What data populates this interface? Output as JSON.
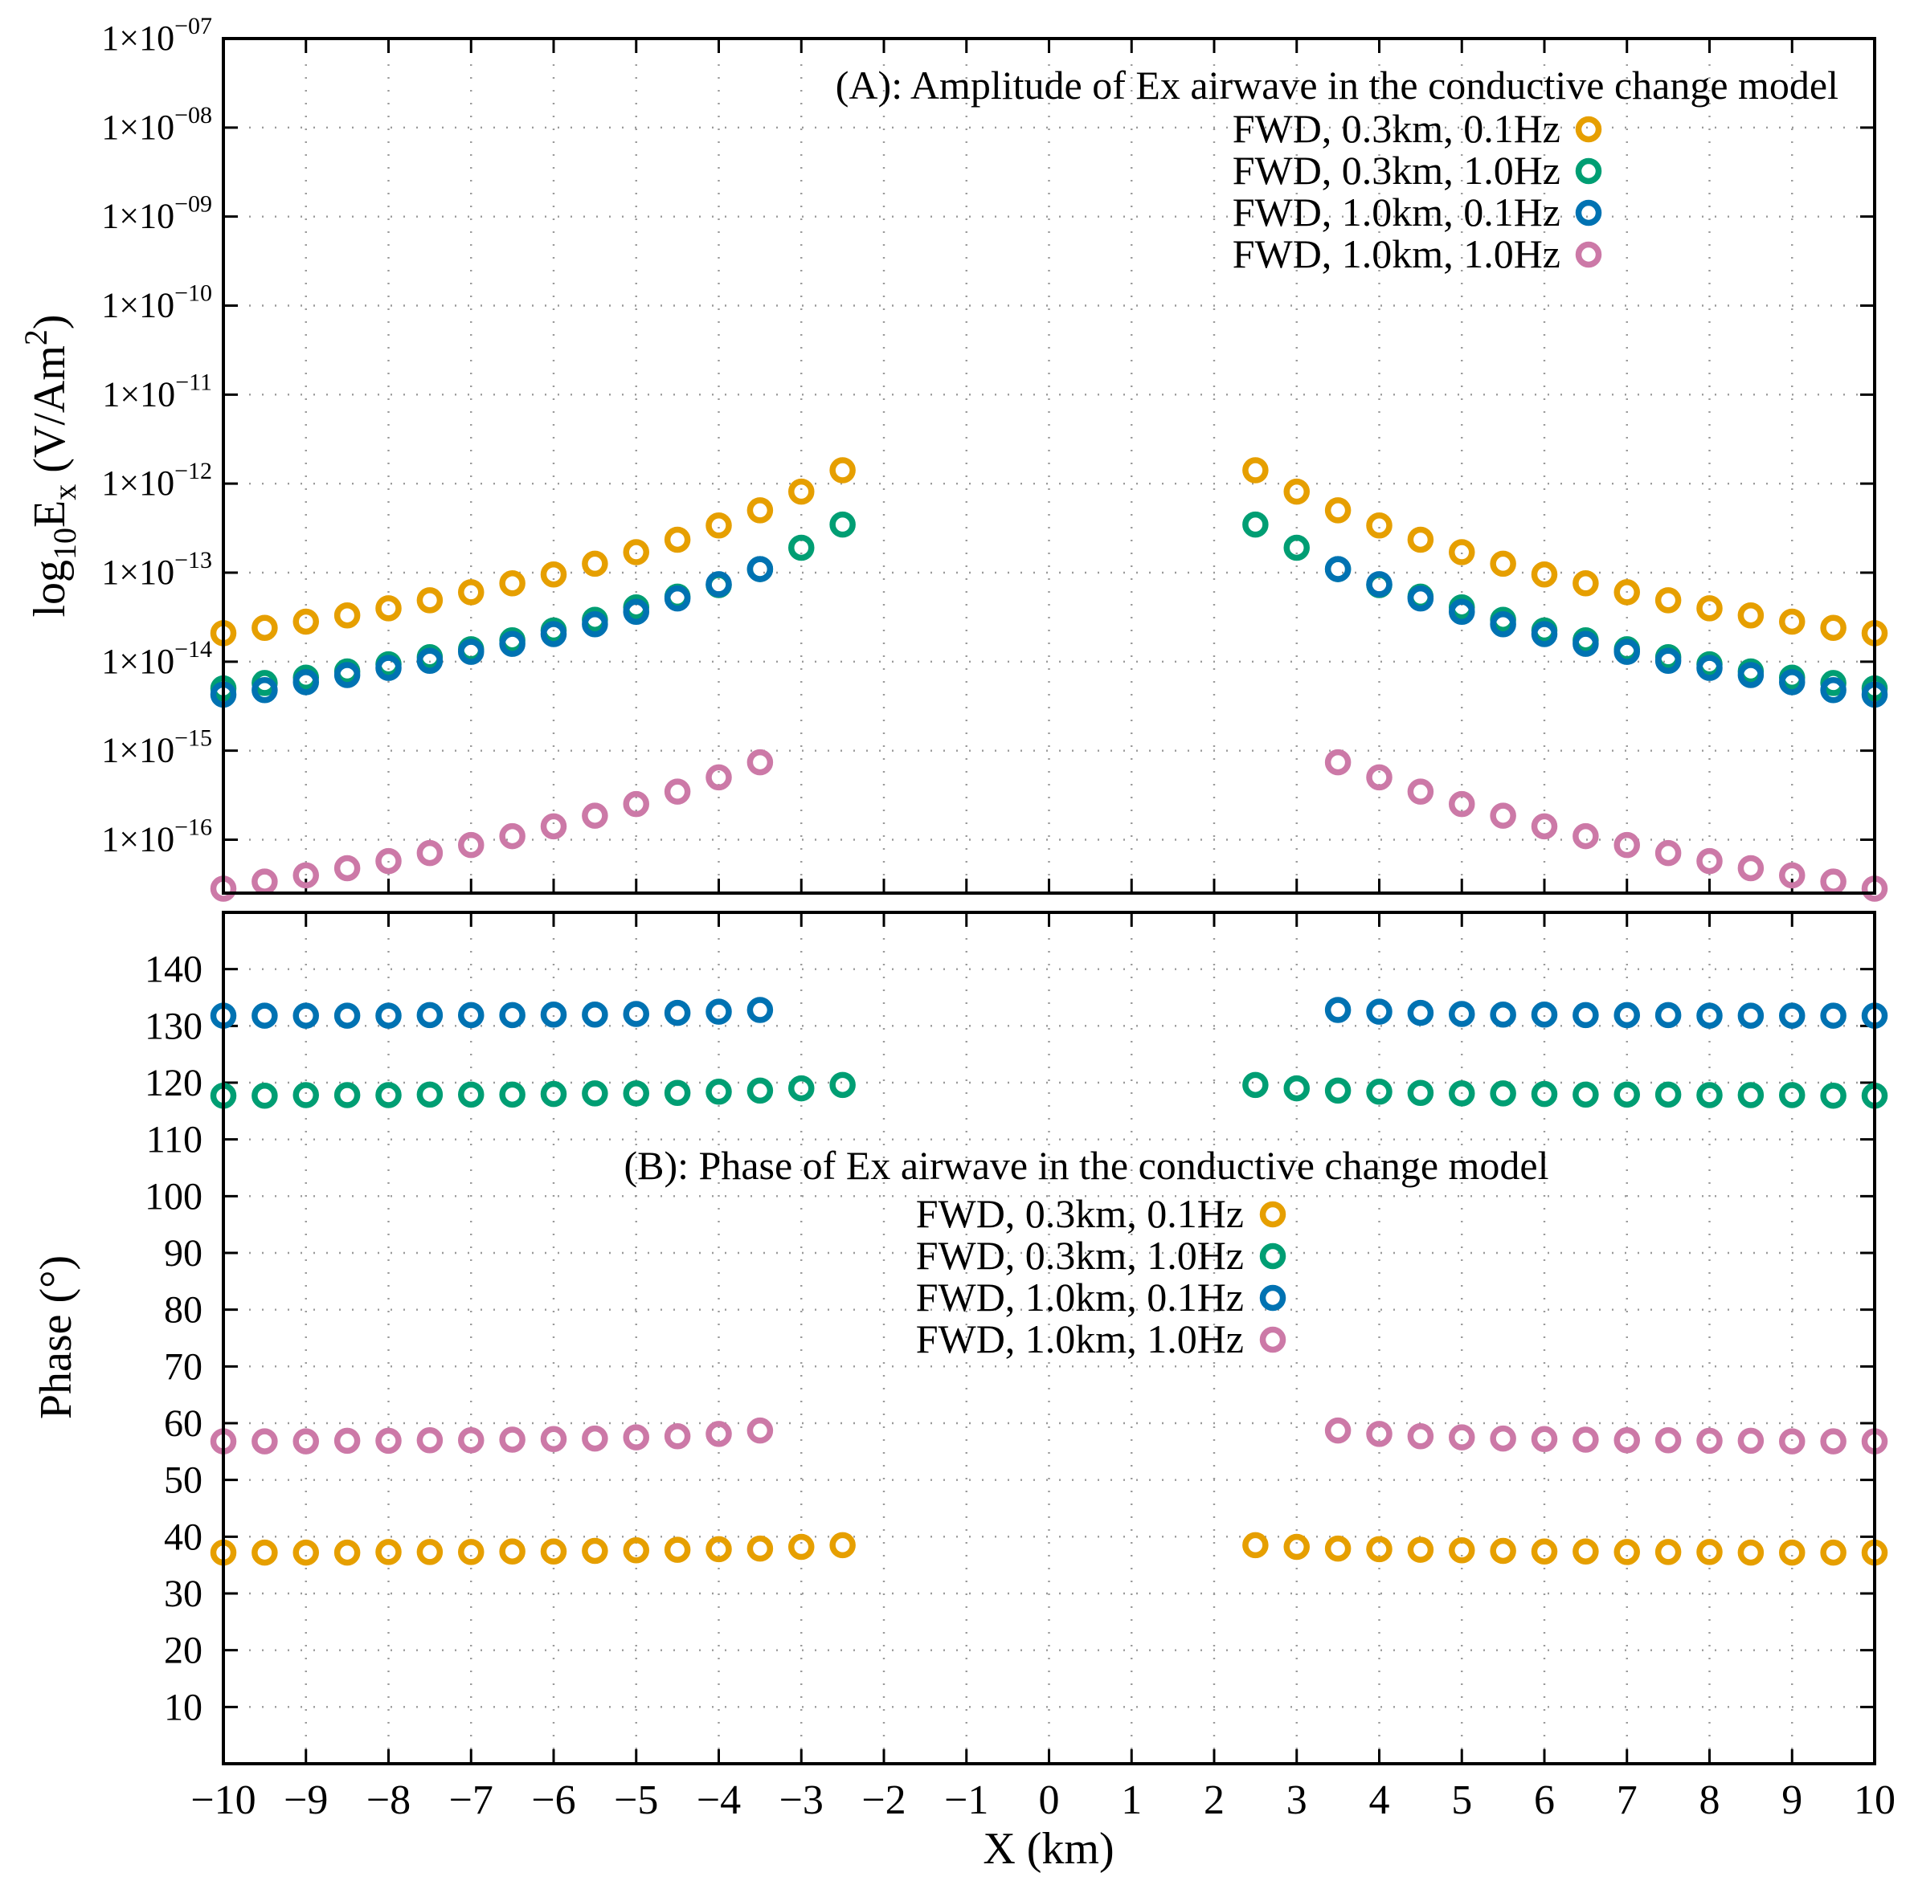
{
  "chart_data": [
    {
      "type": "scatter",
      "title": "(A): Amplitude of Ex airwave in the conductive change model",
      "xlabel": "X (km)",
      "ylabel": "log10Ex (V/Am2)",
      "ylabel_parts": {
        "prefix": "log",
        "sub1": "10",
        "main": "E",
        "sub2": "x",
        "unit_open": " (V/Am",
        "sup": "2",
        "unit_close": ")"
      },
      "yscale": "log",
      "ylim": [
        -16.6,
        -7
      ],
      "xlim": [
        -10,
        10
      ],
      "yticks": [
        {
          "exp": -16,
          "mant": "1×10",
          "sup": "−16"
        },
        {
          "exp": -15,
          "mant": "1×10",
          "sup": "−15"
        },
        {
          "exp": -14,
          "mant": "1×10",
          "sup": "−14"
        },
        {
          "exp": -13,
          "mant": "1×10",
          "sup": "−13"
        },
        {
          "exp": -12,
          "mant": "1×10",
          "sup": "−12"
        },
        {
          "exp": -11,
          "mant": "1×10",
          "sup": "−11"
        },
        {
          "exp": -10,
          "mant": "1×10",
          "sup": "−10"
        },
        {
          "exp": -9,
          "mant": "1×10",
          "sup": "−09"
        },
        {
          "exp": -8,
          "mant": "1×10",
          "sup": "−08"
        },
        {
          "exp": -7,
          "mant": "1×10",
          "sup": "−07"
        }
      ],
      "legend_position": "top-right",
      "series": [
        {
          "name": "FWD, 0.3km, 0.1Hz",
          "color": "#E69F00",
          "x": [
            -10,
            -9.5,
            -9,
            -8.5,
            -8,
            -7.5,
            -7,
            -6.5,
            -6,
            -5.5,
            -5,
            -4.5,
            -4,
            -3.5,
            -3,
            -2.5,
            2.5,
            3,
            3.5,
            4,
            4.5,
            5,
            5.5,
            6,
            6.5,
            7,
            7.5,
            8,
            8.5,
            9,
            9.5,
            10
          ],
          "log10_y": [
            -13.68,
            -13.62,
            -13.55,
            -13.48,
            -13.4,
            -13.31,
            -13.22,
            -13.12,
            -13.02,
            -12.9,
            -12.77,
            -12.63,
            -12.47,
            -12.3,
            -12.09,
            -11.85,
            -11.85,
            -12.09,
            -12.3,
            -12.47,
            -12.63,
            -12.77,
            -12.9,
            -13.02,
            -13.12,
            -13.22,
            -13.31,
            -13.4,
            -13.48,
            -13.55,
            -13.62,
            -13.68
          ]
        },
        {
          "name": "FWD, 0.3km, 1.0Hz",
          "color": "#009E73",
          "x": [
            -10,
            -9.5,
            -9,
            -8.5,
            -8,
            -7.5,
            -7,
            -6.5,
            -6,
            -5.5,
            -5,
            -4.5,
            -4,
            -3.5,
            -3,
            -2.5,
            2.5,
            3,
            3.5,
            4,
            4.5,
            5,
            5.5,
            6,
            6.5,
            7,
            7.5,
            8,
            8.5,
            9,
            9.5,
            10
          ],
          "log10_y": [
            -14.3,
            -14.24,
            -14.18,
            -14.11,
            -14.03,
            -13.95,
            -13.86,
            -13.76,
            -13.65,
            -13.53,
            -13.39,
            -13.27,
            -13.14,
            -12.96,
            -12.72,
            -12.46,
            -12.46,
            -12.72,
            -12.96,
            -13.14,
            -13.27,
            -13.39,
            -13.53,
            -13.65,
            -13.76,
            -13.86,
            -13.95,
            -14.03,
            -14.11,
            -14.18,
            -14.24,
            -14.3
          ]
        },
        {
          "name": "FWD, 1.0km, 0.1Hz",
          "color": "#0072B2",
          "x": [
            -10,
            -9.5,
            -9,
            -8.5,
            -8,
            -7.5,
            -7,
            -6.5,
            -6,
            -5.5,
            -5,
            -4.5,
            -4,
            -3.5,
            3.5,
            4,
            4.5,
            5,
            5.5,
            6,
            6.5,
            7,
            7.5,
            8,
            8.5,
            9,
            9.5,
            10
          ],
          "log10_y": [
            -14.37,
            -14.32,
            -14.23,
            -14.15,
            -14.07,
            -13.99,
            -13.89,
            -13.8,
            -13.69,
            -13.58,
            -13.44,
            -13.29,
            -13.13,
            -12.96,
            -12.96,
            -13.13,
            -13.29,
            -13.44,
            -13.58,
            -13.69,
            -13.8,
            -13.89,
            -13.99,
            -14.07,
            -14.15,
            -14.23,
            -14.32,
            -14.37
          ]
        },
        {
          "name": "FWD, 1.0km, 1.0Hz",
          "color": "#CC79A7",
          "x": [
            -10,
            -9.5,
            -9,
            -8.5,
            -8,
            -7.5,
            -7,
            -6.5,
            -6,
            -5.5,
            -5,
            -4.5,
            -4,
            -3.5,
            3.5,
            4,
            4.5,
            5,
            5.5,
            6,
            6.5,
            7,
            7.5,
            8,
            8.5,
            9,
            9.5,
            10
          ],
          "log10_y": [
            -16.55,
            -16.47,
            -16.4,
            -16.32,
            -16.24,
            -16.15,
            -16.06,
            -15.96,
            -15.85,
            -15.73,
            -15.6,
            -15.46,
            -15.3,
            -15.13,
            -15.13,
            -15.3,
            -15.46,
            -15.6,
            -15.73,
            -15.85,
            -15.96,
            -16.06,
            -16.15,
            -16.24,
            -16.32,
            -16.4,
            -16.47,
            -16.55
          ]
        }
      ]
    },
    {
      "type": "scatter",
      "title": "(B): Phase of Ex airwave  in the conductive change model",
      "xlabel": "X (km)",
      "ylabel": "Phase (°)",
      "ylim": [
        0,
        150
      ],
      "xlim": [
        -10,
        10
      ],
      "yticks": [
        10,
        20,
        30,
        40,
        50,
        60,
        70,
        80,
        90,
        100,
        110,
        120,
        130,
        140
      ],
      "xticks": [
        -10,
        -9,
        -8,
        -7,
        -6,
        -5,
        -4,
        -3,
        -2,
        -1,
        0,
        1,
        2,
        3,
        4,
        5,
        6,
        7,
        8,
        9,
        10
      ],
      "xtick_labels": [
        "−10",
        "−9",
        "−8",
        "−7",
        "−6",
        "−5",
        "−4",
        "−3",
        "−2",
        "−1",
        "0",
        "1",
        "2",
        "3",
        "4",
        "5",
        "6",
        "7",
        "8",
        "9",
        "10"
      ],
      "legend_position": "center",
      "series": [
        {
          "name": "FWD, 0.3km, 0.1Hz",
          "color": "#E69F00",
          "x": [
            -10,
            -9.5,
            -9,
            -8.5,
            -8,
            -7.5,
            -7,
            -6.5,
            -6,
            -5.5,
            -5,
            -4.5,
            -4,
            -3.5,
            -3,
            -2.5,
            2.5,
            3,
            3.5,
            4,
            4.5,
            5,
            5.5,
            6,
            6.5,
            7,
            7.5,
            8,
            8.5,
            9,
            9.5,
            10
          ],
          "y": [
            37.2,
            37.2,
            37.2,
            37.2,
            37.3,
            37.3,
            37.3,
            37.4,
            37.4,
            37.5,
            37.6,
            37.7,
            37.8,
            37.9,
            38.2,
            38.5,
            38.5,
            38.2,
            37.9,
            37.8,
            37.7,
            37.6,
            37.5,
            37.4,
            37.4,
            37.3,
            37.3,
            37.3,
            37.2,
            37.2,
            37.2,
            37.2
          ]
        },
        {
          "name": "FWD, 0.3km, 1.0Hz",
          "color": "#009E73",
          "x": [
            -10,
            -9.5,
            -9,
            -8.5,
            -8,
            -7.5,
            -7,
            -6.5,
            -6,
            -5.5,
            -5,
            -4.5,
            -4,
            -3.5,
            -3,
            -2.5,
            2.5,
            3,
            3.5,
            4,
            4.5,
            5,
            5.5,
            6,
            6.5,
            7,
            7.5,
            8,
            8.5,
            9,
            9.5,
            10
          ],
          "y": [
            117.7,
            117.7,
            117.8,
            117.8,
            117.8,
            117.9,
            117.9,
            117.9,
            118,
            118.1,
            118.1,
            118.2,
            118.4,
            118.6,
            119,
            119.6,
            119.6,
            119,
            118.6,
            118.4,
            118.2,
            118.1,
            118.1,
            118,
            117.9,
            117.9,
            117.9,
            117.8,
            117.8,
            117.8,
            117.7,
            117.7
          ]
        },
        {
          "name": "FWD, 1.0km, 0.1Hz",
          "color": "#0072B2",
          "x": [
            -10,
            -9.5,
            -9,
            -8.5,
            -8,
            -7.5,
            -7,
            -6.5,
            -6,
            -5.5,
            -5,
            -4.5,
            -4,
            -3.5,
            3.5,
            4,
            4.5,
            5,
            5.5,
            6,
            6.5,
            7,
            7.5,
            8,
            8.5,
            9,
            9.5,
            10
          ],
          "y": [
            131.8,
            131.8,
            131.8,
            131.8,
            131.8,
            131.9,
            131.9,
            131.9,
            132,
            132,
            132.1,
            132.3,
            132.5,
            132.8,
            132.8,
            132.5,
            132.3,
            132.1,
            132,
            132,
            131.9,
            131.9,
            131.9,
            131.8,
            131.8,
            131.8,
            131.8,
            131.8
          ]
        },
        {
          "name": "FWD, 1.0km, 1.0Hz",
          "color": "#CC79A7",
          "x": [
            -10,
            -9.5,
            -9,
            -8.5,
            -8,
            -7.5,
            -7,
            -6.5,
            -6,
            -5.5,
            -5,
            -4.5,
            -4,
            -3.5,
            3.5,
            4,
            4.5,
            5,
            5.5,
            6,
            6.5,
            7,
            7.5,
            8,
            8.5,
            9,
            9.5,
            10
          ],
          "y": [
            56.8,
            56.8,
            56.8,
            56.9,
            56.9,
            57,
            57,
            57.1,
            57.2,
            57.3,
            57.5,
            57.7,
            58.1,
            58.7,
            58.7,
            58.1,
            57.7,
            57.5,
            57.3,
            57.2,
            57.1,
            57,
            57,
            56.9,
            56.9,
            56.8,
            56.8,
            56.8
          ]
        }
      ]
    }
  ]
}
